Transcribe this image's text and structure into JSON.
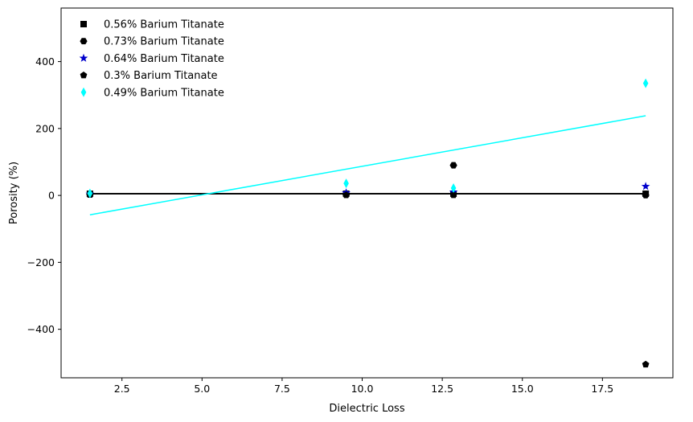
{
  "chart_data": {
    "type": "scatter",
    "title": "",
    "xlabel": "Dielectric Loss",
    "ylabel": "Porosity (%)",
    "xlim": [
      0.6,
      19.7
    ],
    "ylim": [
      -545,
      560
    ],
    "x_ticks": [
      2.5,
      5.0,
      7.5,
      10.0,
      12.5,
      15.0,
      17.5
    ],
    "x_tick_labels": [
      "2.5",
      "5.0",
      "7.5",
      "10.0",
      "12.5",
      "15.0",
      "17.5"
    ],
    "y_ticks": [
      -400,
      -200,
      0,
      200,
      400
    ],
    "y_tick_labels": [
      "−400",
      "−200",
      "0",
      "200",
      "400"
    ],
    "grid": false,
    "legend_position": "top-left",
    "series": [
      {
        "name": "0.56% Barium Titanate",
        "marker": "square",
        "color": "#000000",
        "x": [
          1.5,
          9.5,
          12.85,
          18.85
        ],
        "y": [
          5,
          5,
          5,
          5
        ],
        "fit": {
          "x": [
            1.5,
            18.85
          ],
          "y": [
            5,
            5
          ],
          "color": "#000000"
        }
      },
      {
        "name": "0.73% Barium Titanate",
        "marker": "hexagon",
        "color": "#000000",
        "x": [
          1.5,
          9.5,
          12.85,
          18.85
        ],
        "y": [
          3,
          2,
          90,
          1
        ],
        "fit": {
          "x": [
            1.5,
            18.85
          ],
          "y": [
            5,
            5
          ],
          "color": "#000000"
        }
      },
      {
        "name": "0.64% Barium Titanate",
        "marker": "star",
        "color": "#0000cc",
        "x": [
          1.5,
          9.5,
          12.85,
          18.85
        ],
        "y": [
          4,
          8,
          10,
          27
        ],
        "fit": {
          "x": [
            1.5,
            18.85
          ],
          "y": [
            5,
            5
          ],
          "color": "#000000"
        }
      },
      {
        "name": "0.3% Barium Titanate",
        "marker": "pentagon",
        "color": "#000000",
        "x": [
          1.5,
          9.5,
          12.85,
          18.85
        ],
        "y": [
          2,
          1,
          1,
          -505
        ],
        "fit": {
          "x": [
            1.5,
            18.85
          ],
          "y": [
            5,
            5
          ],
          "color": "#000000"
        }
      },
      {
        "name": "0.49% Barium Titanate",
        "marker": "thin_diamond",
        "color": "#00ffff",
        "x": [
          1.5,
          9.5,
          12.85,
          18.85
        ],
        "y": [
          6,
          36,
          22,
          335
        ],
        "fit": {
          "x": [
            1.5,
            18.85
          ],
          "y": [
            -58,
            238
          ],
          "color": "#00ffff"
        }
      }
    ]
  }
}
